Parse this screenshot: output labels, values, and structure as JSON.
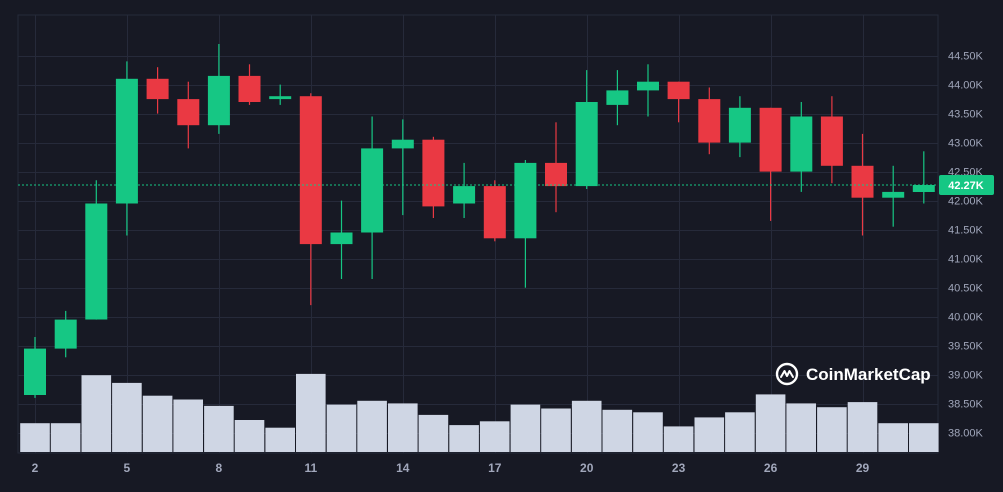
{
  "brand": {
    "name": "CoinMarketCap",
    "logo_icon": "coinmarketcap-logo-icon"
  },
  "current_price": {
    "label": "42.27K",
    "value": 42270
  },
  "colors": {
    "up": "#16c784",
    "down": "#ea3943",
    "volume": "#cfd6e4",
    "grid": "#262a3a",
    "background": "#171924"
  },
  "chart_data": {
    "type": "candlestick",
    "ylim": [
      37650,
      45200
    ],
    "y_ticks": [
      {
        "value": 38000,
        "label": "38.00K"
      },
      {
        "value": 38500,
        "label": "38.50K"
      },
      {
        "value": 39000,
        "label": "39.00K"
      },
      {
        "value": 39500,
        "label": "39.50K"
      },
      {
        "value": 40000,
        "label": "40.00K"
      },
      {
        "value": 40500,
        "label": "40.50K"
      },
      {
        "value": 41000,
        "label": "41.00K"
      },
      {
        "value": 41500,
        "label": "41.50K"
      },
      {
        "value": 42000,
        "label": "42.00K"
      },
      {
        "value": 42500,
        "label": "42.50K"
      },
      {
        "value": 43000,
        "label": "43.00K"
      },
      {
        "value": 43500,
        "label": "43.50K"
      },
      {
        "value": 44000,
        "label": "44.00K"
      },
      {
        "value": 44500,
        "label": "44.50K"
      }
    ],
    "x_ticks": [
      "2",
      "5",
      "8",
      "11",
      "14",
      "17",
      "20",
      "23",
      "26",
      "29"
    ],
    "x_tick_days": [
      2,
      5,
      8,
      11,
      14,
      17,
      20,
      23,
      26,
      29
    ],
    "candles": [
      {
        "day": 2,
        "open": 38650,
        "high": 39650,
        "low": 38600,
        "close": 39450,
        "volume": 0.45
      },
      {
        "day": 3,
        "open": 39450,
        "high": 40100,
        "low": 39300,
        "close": 39950,
        "volume": 0.45
      },
      {
        "day": 4,
        "open": 39950,
        "high": 42350,
        "low": 39950,
        "close": 41950,
        "volume": 1.2
      },
      {
        "day": 5,
        "open": 41950,
        "high": 44400,
        "low": 41400,
        "close": 44100,
        "volume": 1.08
      },
      {
        "day": 6,
        "open": 44100,
        "high": 44300,
        "low": 43500,
        "close": 43750,
        "volume": 0.88
      },
      {
        "day": 7,
        "open": 43750,
        "high": 44050,
        "low": 42900,
        "close": 43300,
        "volume": 0.82
      },
      {
        "day": 8,
        "open": 43300,
        "high": 44700,
        "low": 43150,
        "close": 44150,
        "volume": 0.72
      },
      {
        "day": 9,
        "open": 44150,
        "high": 44350,
        "low": 43650,
        "close": 43700,
        "volume": 0.5
      },
      {
        "day": 10,
        "open": 43750,
        "high": 44000,
        "low": 43650,
        "close": 43800,
        "volume": 0.38
      },
      {
        "day": 11,
        "open": 43800,
        "high": 43850,
        "low": 40200,
        "close": 41250,
        "volume": 1.22
      },
      {
        "day": 12,
        "open": 41250,
        "high": 42000,
        "low": 40650,
        "close": 41450,
        "volume": 0.74
      },
      {
        "day": 13,
        "open": 41450,
        "high": 43450,
        "low": 40650,
        "close": 42900,
        "volume": 0.8
      },
      {
        "day": 14,
        "open": 42900,
        "high": 43400,
        "low": 41750,
        "close": 43050,
        "volume": 0.76
      },
      {
        "day": 15,
        "open": 43050,
        "high": 43100,
        "low": 41700,
        "close": 41900,
        "volume": 0.58
      },
      {
        "day": 16,
        "open": 41950,
        "high": 42650,
        "low": 41700,
        "close": 42250,
        "volume": 0.42
      },
      {
        "day": 17,
        "open": 42250,
        "high": 42350,
        "low": 41300,
        "close": 41350,
        "volume": 0.48
      },
      {
        "day": 18,
        "open": 41350,
        "high": 42700,
        "low": 40500,
        "close": 42650,
        "volume": 0.74
      },
      {
        "day": 19,
        "open": 42650,
        "high": 43350,
        "low": 41800,
        "close": 42250,
        "volume": 0.68
      },
      {
        "day": 20,
        "open": 42250,
        "high": 44250,
        "low": 42200,
        "close": 43700,
        "volume": 0.8
      },
      {
        "day": 21,
        "open": 43650,
        "high": 44250,
        "low": 43300,
        "close": 43900,
        "volume": 0.66
      },
      {
        "day": 22,
        "open": 43900,
        "high": 44350,
        "low": 43450,
        "close": 44050,
        "volume": 0.62
      },
      {
        "day": 23,
        "open": 44050,
        "high": 44050,
        "low": 43350,
        "close": 43750,
        "volume": 0.4
      },
      {
        "day": 24,
        "open": 43750,
        "high": 43950,
        "low": 42800,
        "close": 43000,
        "volume": 0.54
      },
      {
        "day": 25,
        "open": 43000,
        "high": 43800,
        "low": 42750,
        "close": 43600,
        "volume": 0.62
      },
      {
        "day": 26,
        "open": 43600,
        "high": 43600,
        "low": 41650,
        "close": 42500,
        "volume": 0.9
      },
      {
        "day": 27,
        "open": 42500,
        "high": 43700,
        "low": 42150,
        "close": 43450,
        "volume": 0.76
      },
      {
        "day": 28,
        "open": 43450,
        "high": 43800,
        "low": 42300,
        "close": 42600,
        "volume": 0.7
      },
      {
        "day": 29,
        "open": 42600,
        "high": 43150,
        "low": 41400,
        "close": 42050,
        "volume": 0.78
      },
      {
        "day": 30,
        "open": 42050,
        "high": 42600,
        "low": 41550,
        "close": 42150,
        "volume": 0.45
      },
      {
        "day": 31,
        "open": 42150,
        "high": 42850,
        "low": 41950,
        "close": 42270,
        "volume": 0.45
      }
    ]
  }
}
